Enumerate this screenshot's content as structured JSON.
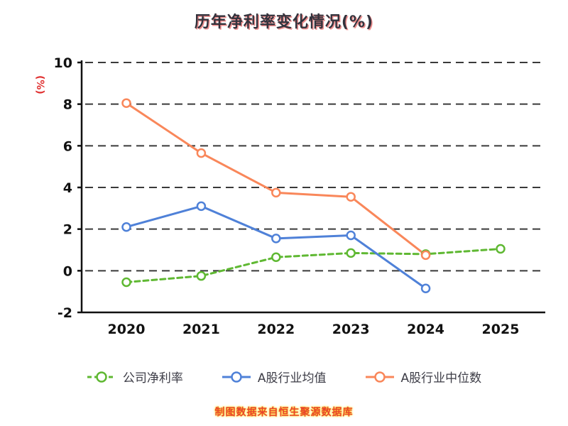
{
  "title": "历年净利率变化情况(%)",
  "caption": "制图数据来自恒生聚源数据库",
  "chart_data": {
    "type": "line",
    "title": "历年净利率变化情况(%)",
    "ylabel": "(%)",
    "xlabel": "",
    "categories": [
      "2020",
      "2021",
      "2022",
      "2023",
      "2024",
      "2025"
    ],
    "ylim": [
      -2,
      10
    ],
    "yticks": [
      -2,
      0,
      2,
      4,
      6,
      8,
      10
    ],
    "grid": "horizontal-dashed",
    "legend_position": "bottom",
    "axis_color": "#111111",
    "grid_color": "#3a3a3a",
    "tick_label_color": "#111111",
    "series": [
      {
        "name": "公司净利率",
        "color": "#5fb832",
        "dashed": true,
        "values": [
          -0.55,
          -0.25,
          0.65,
          0.85,
          0.8,
          1.05
        ]
      },
      {
        "name": "A股行业均值",
        "color": "#4f81d8",
        "dashed": false,
        "values": [
          2.1,
          3.1,
          1.55,
          1.7,
          -0.85,
          null
        ]
      },
      {
        "name": "A股行业中位数",
        "color": "#f9875a",
        "dashed": false,
        "values": [
          8.05,
          5.65,
          3.75,
          3.55,
          0.75,
          null
        ]
      }
    ]
  }
}
